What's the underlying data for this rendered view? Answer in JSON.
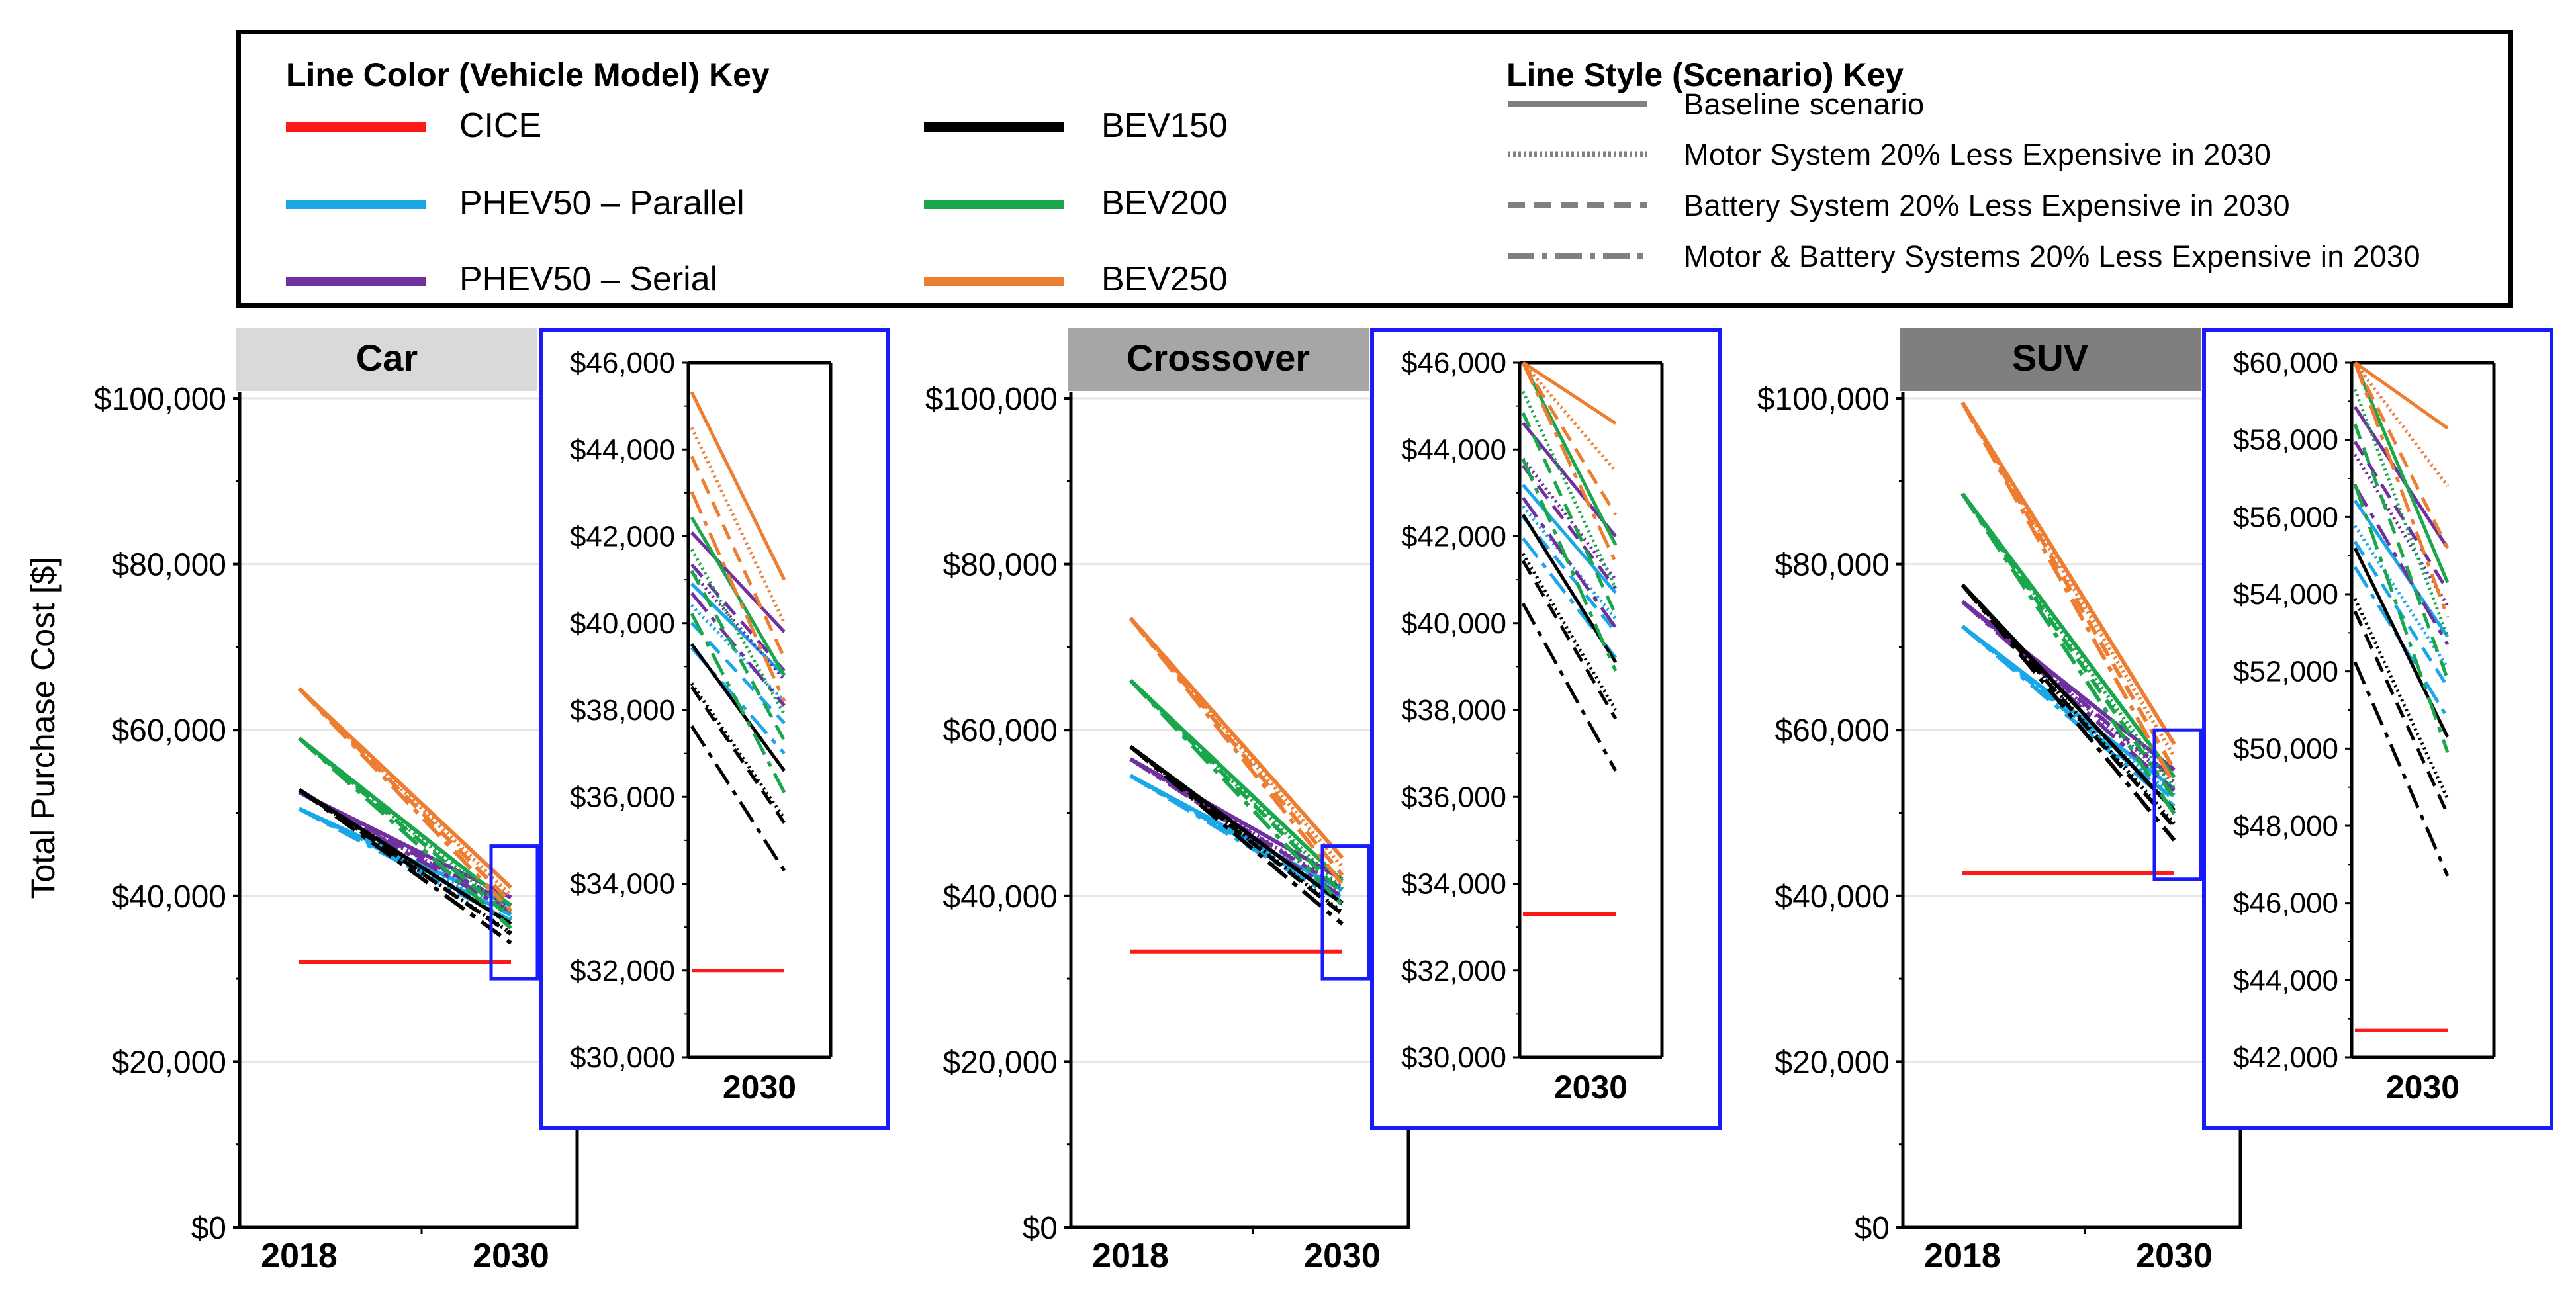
{
  "legend": {
    "color_key_title": "Line Color (Vehicle Model) Key",
    "style_key_title": "Line Style (Scenario) Key",
    "models": [
      {
        "label": "CICE",
        "color": "#ff1a1a"
      },
      {
        "label": "PHEV50 – Parallel",
        "color": "#1aa7e8"
      },
      {
        "label": "PHEV50 – Serial",
        "color": "#7030a0"
      },
      {
        "label": "BEV150",
        "color": "#000000"
      },
      {
        "label": "BEV200",
        "color": "#1aa64a"
      },
      {
        "label": "BEV250",
        "color": "#ed7d31"
      }
    ],
    "scenarios": [
      {
        "label": "Baseline scenario",
        "style": "solid"
      },
      {
        "label": "Motor System 20% Less Expensive in 2030",
        "style": "dotted"
      },
      {
        "label": "Battery System 20% Less Expensive in 2030",
        "style": "dashed"
      },
      {
        "label": "Motor & Battery Systems 20% Less Expensive in 2030",
        "style": "dashdot"
      }
    ]
  },
  "y_axis_label": "Total Purchase Cost [$]",
  "chart_data": [
    {
      "type": "line",
      "title": "Car",
      "title_bg": "#d9d9d9",
      "xlabel": "",
      "ylabel": "Total Purchase Cost [$]",
      "categories": [
        "2018",
        "2030"
      ],
      "ylim": [
        0,
        100000
      ],
      "yticks": [
        "$0",
        "$20,000",
        "$40,000",
        "$60,000",
        "$80,000",
        "$100,000"
      ],
      "series": [
        {
          "name": "CICE",
          "scenario": "Baseline scenario",
          "values": [
            32000,
            32000
          ]
        },
        {
          "name": "PHEV50 – Parallel",
          "scenario": "Baseline scenario",
          "values": [
            50500,
            38800
          ]
        },
        {
          "name": "PHEV50 – Parallel",
          "scenario": "Motor System 20% Less Expensive in 2030",
          "values": [
            50500,
            38200
          ]
        },
        {
          "name": "PHEV50 – Parallel",
          "scenario": "Battery System 20% Less Expensive in 2030",
          "values": [
            50500,
            37700
          ]
        },
        {
          "name": "PHEV50 – Parallel",
          "scenario": "Motor & Battery Systems 20% Less Expensive in 2030",
          "values": [
            50500,
            37000
          ]
        },
        {
          "name": "PHEV50 – Serial",
          "scenario": "Baseline scenario",
          "values": [
            52500,
            39800
          ]
        },
        {
          "name": "PHEV50 – Serial",
          "scenario": "Motor System 20% Less Expensive in 2030",
          "values": [
            52500,
            38700
          ]
        },
        {
          "name": "PHEV50 – Serial",
          "scenario": "Battery System 20% Less Expensive in 2030",
          "values": [
            52500,
            38900
          ]
        },
        {
          "name": "PHEV50 – Serial",
          "scenario": "Motor & Battery Systems 20% Less Expensive in 2030",
          "values": [
            52500,
            38100
          ]
        },
        {
          "name": "BEV150",
          "scenario": "Baseline scenario",
          "values": [
            52800,
            36600
          ]
        },
        {
          "name": "BEV150",
          "scenario": "Motor System 20% Less Expensive in 2030",
          "values": [
            52800,
            35500
          ]
        },
        {
          "name": "BEV150",
          "scenario": "Battery System 20% Less Expensive in 2030",
          "values": [
            52800,
            35400
          ]
        },
        {
          "name": "BEV150",
          "scenario": "Motor & Battery Systems 20% Less Expensive in 2030",
          "values": [
            52800,
            34300
          ]
        },
        {
          "name": "BEV200",
          "scenario": "Baseline scenario",
          "values": [
            59000,
            38800
          ]
        },
        {
          "name": "BEV200",
          "scenario": "Motor System 20% Less Expensive in 2030",
          "values": [
            59000,
            37900
          ]
        },
        {
          "name": "BEV200",
          "scenario": "Battery System 20% Less Expensive in 2030",
          "values": [
            59000,
            37300
          ]
        },
        {
          "name": "BEV200",
          "scenario": "Motor & Battery Systems 20% Less Expensive in 2030",
          "values": [
            59000,
            36100
          ]
        },
        {
          "name": "BEV250",
          "scenario": "Baseline scenario",
          "values": [
            65000,
            41000
          ]
        },
        {
          "name": "BEV250",
          "scenario": "Motor System 20% Less Expensive in 2030",
          "values": [
            65000,
            40000
          ]
        },
        {
          "name": "BEV250",
          "scenario": "Battery System 20% Less Expensive in 2030",
          "values": [
            65000,
            39200
          ]
        },
        {
          "name": "BEV250",
          "scenario": "Motor & Battery Systems 20% Less Expensive in 2030",
          "values": [
            65000,
            38200
          ]
        }
      ],
      "inset": {
        "xlabel": "2030",
        "ylim": [
          30000,
          46000
        ],
        "yticks": [
          "$30,000",
          "$32,000",
          "$34,000",
          "$36,000",
          "$38,000",
          "$40,000",
          "$42,000",
          "$44,000",
          "$46,000"
        ]
      }
    },
    {
      "type": "line",
      "title": "Crossover",
      "title_bg": "#a6a6a6",
      "xlabel": "",
      "ylabel": "",
      "categories": [
        "2018",
        "2030"
      ],
      "ylim": [
        0,
        100000
      ],
      "yticks": [
        "$0",
        "$20,000",
        "$40,000",
        "$60,000",
        "$80,000",
        "$100,000"
      ],
      "series": [
        {
          "name": "CICE",
          "scenario": "Baseline scenario",
          "values": [
            33300,
            33300
          ]
        },
        {
          "name": "PHEV50 – Parallel",
          "scenario": "Baseline scenario",
          "values": [
            54500,
            40700
          ]
        },
        {
          "name": "PHEV50 – Parallel",
          "scenario": "Motor System 20% Less Expensive in 2030",
          "values": [
            54500,
            40100
          ]
        },
        {
          "name": "PHEV50 – Parallel",
          "scenario": "Battery System 20% Less Expensive in 2030",
          "values": [
            54500,
            39800
          ]
        },
        {
          "name": "PHEV50 – Parallel",
          "scenario": "Motor & Battery Systems 20% Less Expensive in 2030",
          "values": [
            54500,
            39200
          ]
        },
        {
          "name": "PHEV50 – Serial",
          "scenario": "Baseline scenario",
          "values": [
            56500,
            42000
          ]
        },
        {
          "name": "PHEV50 – Serial",
          "scenario": "Motor System 20% Less Expensive in 2030",
          "values": [
            56500,
            41000
          ]
        },
        {
          "name": "PHEV50 – Serial",
          "scenario": "Battery System 20% Less Expensive in 2030",
          "values": [
            56500,
            40800
          ]
        },
        {
          "name": "PHEV50 – Serial",
          "scenario": "Motor & Battery Systems 20% Less Expensive in 2030",
          "values": [
            56500,
            39900
          ]
        },
        {
          "name": "BEV150",
          "scenario": "Baseline scenario",
          "values": [
            58000,
            39100
          ]
        },
        {
          "name": "BEV150",
          "scenario": "Motor System 20% Less Expensive in 2030",
          "values": [
            58000,
            38000
          ]
        },
        {
          "name": "BEV150",
          "scenario": "Battery System 20% Less Expensive in 2030",
          "values": [
            58000,
            37800
          ]
        },
        {
          "name": "BEV150",
          "scenario": "Motor & Battery Systems 20% Less Expensive in 2030",
          "values": [
            58000,
            36600
          ]
        },
        {
          "name": "BEV200",
          "scenario": "Baseline scenario",
          "values": [
            66000,
            41800
          ]
        },
        {
          "name": "BEV200",
          "scenario": "Motor System 20% Less Expensive in 2030",
          "values": [
            66000,
            40800
          ]
        },
        {
          "name": "BEV200",
          "scenario": "Battery System 20% Less Expensive in 2030",
          "values": [
            66000,
            40200
          ]
        },
        {
          "name": "BEV200",
          "scenario": "Motor & Battery Systems 20% Less Expensive in 2030",
          "values": [
            66000,
            38900
          ]
        },
        {
          "name": "BEV250",
          "scenario": "Baseline scenario",
          "values": [
            73500,
            44600
          ]
        },
        {
          "name": "BEV250",
          "scenario": "Motor System 20% Less Expensive in 2030",
          "values": [
            73500,
            43500
          ]
        },
        {
          "name": "BEV250",
          "scenario": "Battery System 20% Less Expensive in 2030",
          "values": [
            73500,
            42500
          ]
        },
        {
          "name": "BEV250",
          "scenario": "Motor & Battery Systems 20% Less Expensive in 2030",
          "values": [
            73500,
            41400
          ]
        }
      ],
      "inset": {
        "xlabel": "2030",
        "ylim": [
          30000,
          46000
        ],
        "yticks": [
          "$30,000",
          "$32,000",
          "$34,000",
          "$36,000",
          "$38,000",
          "$40,000",
          "$42,000",
          "$44,000",
          "$46,000"
        ]
      }
    },
    {
      "type": "line",
      "title": "SUV",
      "title_bg": "#7f7f7f",
      "xlabel": "",
      "ylabel": "",
      "categories": [
        "2018",
        "2030"
      ],
      "ylim": [
        0,
        100000
      ],
      "yticks": [
        "$0",
        "$20,000",
        "$40,000",
        "$60,000",
        "$80,000",
        "$100,000"
      ],
      "series": [
        {
          "name": "CICE",
          "scenario": "Baseline scenario",
          "values": [
            42700,
            42700
          ]
        },
        {
          "name": "PHEV50 – Parallel",
          "scenario": "Baseline scenario",
          "values": [
            72500,
            52900
          ]
        },
        {
          "name": "PHEV50 – Parallel",
          "scenario": "Motor System 20% Less Expensive in 2030",
          "values": [
            72500,
            52100
          ]
        },
        {
          "name": "PHEV50 – Parallel",
          "scenario": "Battery System 20% Less Expensive in 2030",
          "values": [
            72500,
            51600
          ]
        },
        {
          "name": "PHEV50 – Parallel",
          "scenario": "Motor & Battery Systems 20% Less Expensive in 2030",
          "values": [
            72500,
            50800
          ]
        },
        {
          "name": "PHEV50 – Serial",
          "scenario": "Baseline scenario",
          "values": [
            75500,
            55200
          ]
        },
        {
          "name": "PHEV50 – Serial",
          "scenario": "Motor System 20% Less Expensive in 2030",
          "values": [
            75500,
            53700
          ]
        },
        {
          "name": "PHEV50 – Serial",
          "scenario": "Battery System 20% Less Expensive in 2030",
          "values": [
            75500,
            54100
          ]
        },
        {
          "name": "PHEV50 – Serial",
          "scenario": "Motor & Battery Systems 20% Less Expensive in 2030",
          "values": [
            75500,
            52700
          ]
        },
        {
          "name": "BEV150",
          "scenario": "Baseline scenario",
          "values": [
            77500,
            50300
          ]
        },
        {
          "name": "BEV150",
          "scenario": "Motor System 20% Less Expensive in 2030",
          "values": [
            77500,
            48700
          ]
        },
        {
          "name": "BEV150",
          "scenario": "Battery System 20% Less Expensive in 2030",
          "values": [
            77500,
            48300
          ]
        },
        {
          "name": "BEV150",
          "scenario": "Motor & Battery Systems 20% Less Expensive in 2030",
          "values": [
            77500,
            46700
          ]
        },
        {
          "name": "BEV200",
          "scenario": "Baseline scenario",
          "values": [
            88500,
            54300
          ]
        },
        {
          "name": "BEV200",
          "scenario": "Motor System 20% Less Expensive in 2030",
          "values": [
            88500,
            52900
          ]
        },
        {
          "name": "BEV200",
          "scenario": "Battery System 20% Less Expensive in 2030",
          "values": [
            88500,
            51800
          ]
        },
        {
          "name": "BEV200",
          "scenario": "Motor & Battery Systems 20% Less Expensive in 2030",
          "values": [
            88500,
            49900
          ]
        },
        {
          "name": "BEV250",
          "scenario": "Baseline scenario",
          "values": [
            99500,
            58300
          ]
        },
        {
          "name": "BEV250",
          "scenario": "Motor System 20% Less Expensive in 2030",
          "values": [
            99500,
            56800
          ]
        },
        {
          "name": "BEV250",
          "scenario": "Battery System 20% Less Expensive in 2030",
          "values": [
            99500,
            55200
          ]
        },
        {
          "name": "BEV250",
          "scenario": "Motor & Battery Systems 20% Less Expensive in 2030",
          "values": [
            99500,
            53400
          ]
        }
      ],
      "inset": {
        "xlabel": "2030",
        "ylim": [
          42000,
          60000
        ],
        "yticks": [
          "$42,000",
          "$44,000",
          "$46,000",
          "$48,000",
          "$50,000",
          "$52,000",
          "$54,000",
          "$56,000",
          "$58,000",
          "$60,000"
        ]
      }
    }
  ]
}
